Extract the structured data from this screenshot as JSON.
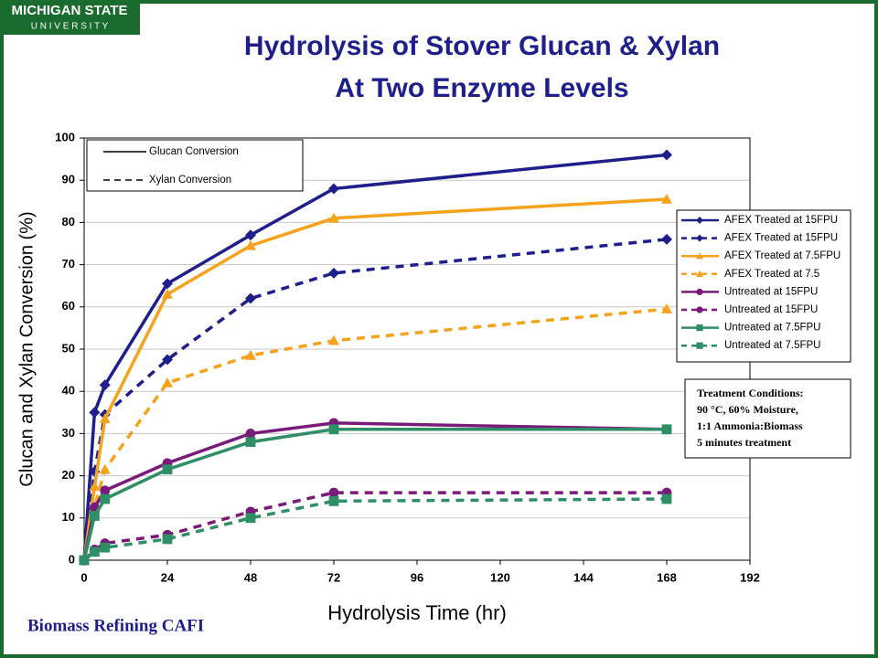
{
  "logo": [
    "MICHIGAN STATE",
    "U N I V E R S I T Y"
  ],
  "footer": "Biomass Refining CAFI",
  "chart_data": {
    "type": "line",
    "title": "Hydrolysis of Stover Glucan & Xylan",
    "subtitle": "At Two Enzyme Levels",
    "x_label": "Hydrolysis Time (hr)",
    "y_label": "Glucan and Xylan Conversion (%)",
    "x": [
      0,
      3,
      6,
      24,
      48,
      72,
      168
    ],
    "xlim": [
      0,
      192
    ],
    "xticks": [
      0,
      24,
      48,
      72,
      96,
      120,
      144,
      168,
      192
    ],
    "ylim": [
      0,
      100
    ],
    "yticks": [
      0,
      10,
      20,
      30,
      40,
      50,
      60,
      70,
      80,
      90,
      100
    ],
    "grid": true,
    "legend": "right",
    "series": [
      {
        "name": "AFEX Treated at 15FPU",
        "color": "#1f1f8c",
        "marker": "diamond",
        "dashed": false,
        "values": [
          0,
          35,
          41.5,
          65.5,
          77,
          88,
          96
        ]
      },
      {
        "name": "AFEX Treated at 15FPU",
        "color": "#1f1f8c",
        "marker": "diamond",
        "dashed": true,
        "values": [
          0,
          21,
          34.5,
          47.5,
          62,
          68,
          76
        ]
      },
      {
        "name": "AFEX Treated at 7.5FPU",
        "color": "#f5a21c",
        "marker": "triangle",
        "dashed": false,
        "values": [
          0,
          17.5,
          33.5,
          63,
          74.5,
          81,
          85.5
        ]
      },
      {
        "name": "AFEX Treated at 7.5",
        "color": "#f5a21c",
        "marker": "triangle",
        "dashed": true,
        "values": [
          0,
          12.5,
          21.5,
          42,
          48.5,
          52,
          59.5
        ]
      },
      {
        "name": "Untreated at 15FPU",
        "color": "#7a1a7a",
        "marker": "circle",
        "dashed": false,
        "values": [
          0,
          12.5,
          16.5,
          23,
          30,
          32.5,
          31
        ]
      },
      {
        "name": "Untreated at 15FPU",
        "color": "#7a1a7a",
        "marker": "circle",
        "dashed": true,
        "values": [
          0,
          2.5,
          4,
          6,
          11.5,
          16,
          16
        ]
      },
      {
        "name": "Untreated at 7.5FPU",
        "color": "#2e8f66",
        "marker": "square",
        "dashed": false,
        "values": [
          0,
          10.5,
          14.5,
          21.5,
          28,
          31,
          31
        ]
      },
      {
        "name": "Untreated at 7.5FPU",
        "color": "#2e8f66",
        "marker": "square",
        "dashed": true,
        "values": [
          0,
          2,
          3,
          5,
          10,
          14,
          14.5
        ]
      }
    ],
    "style_legend": [
      {
        "label": "Glucan Conversion",
        "dashed": false
      },
      {
        "label": "Xylan Conversion",
        "dashed": true
      }
    ],
    "annotation": [
      "Treatment Conditions:",
      "90 °C, 60% Moisture,",
      "1:1 Ammonia:Biomass",
      "5 minutes treatment"
    ]
  }
}
